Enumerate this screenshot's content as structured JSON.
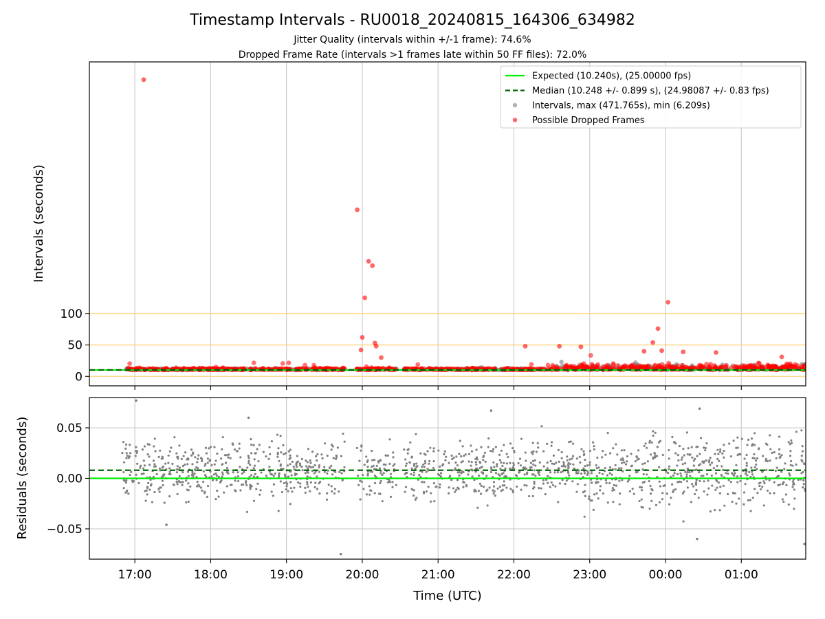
{
  "title": "Timestamp Intervals - RU0018_20240815_164306_634982",
  "subtitle_lines": [
    "Jitter Quality (intervals within +/-1 frame): 74.6%",
    "Dropped Frame Rate (intervals >1 frames late within 50 FF files): 72.0%"
  ],
  "xlabel": "Time (UTC)",
  "colors": {
    "expected": "#00ee00",
    "median": "#006400",
    "intervals": "#808080",
    "dropped": "#ff0000",
    "reference_lines": "#ffd27a",
    "grid": "#cccccc"
  },
  "chart_data": [
    {
      "type": "scatter",
      "panel": "top",
      "ylabel": "Intervals (seconds)",
      "ylim": [
        -15,
        500
      ],
      "yticks": [
        0,
        50,
        100
      ],
      "x_axis": {
        "start": "16:24",
        "end": "01:51",
        "ticks": [
          "17:00",
          "18:00",
          "19:00",
          "20:00",
          "21:00",
          "22:00",
          "23:00",
          "00:00",
          "01:00"
        ]
      },
      "grid": "x-only",
      "reference_lines": [
        0,
        50,
        100
      ],
      "legend_position": "top-right",
      "legend": [
        "Expected (10.240s), (25.00000 fps)",
        "Median (10.248 +/- 0.899 s), (24.98087 +/- 0.83 fps)",
        "Intervals, max (471.765s), min (6.209s)",
        "Possible Dropped Frames"
      ],
      "expected_value": 10.24,
      "median_value": 10.248,
      "intervals_max": 471.765,
      "intervals_min": 6.209,
      "dropped_frame_outliers": [
        {
          "x": "17:07",
          "y": 471.765
        },
        {
          "x": "19:56",
          "y": 265
        },
        {
          "x": "20:05",
          "y": 183
        },
        {
          "x": "20:08",
          "y": 176
        },
        {
          "x": "20:02",
          "y": 125
        },
        {
          "x": "00:02",
          "y": 118
        },
        {
          "x": "23:54",
          "y": 76
        },
        {
          "x": "20:00",
          "y": 62
        },
        {
          "x": "19:59",
          "y": 42
        },
        {
          "x": "20:10",
          "y": 53
        },
        {
          "x": "20:11",
          "y": 48
        },
        {
          "x": "22:09",
          "y": 48
        },
        {
          "x": "22:36",
          "y": 48
        },
        {
          "x": "22:53",
          "y": 47
        },
        {
          "x": "23:50",
          "y": 54
        },
        {
          "x": "23:57",
          "y": 41
        },
        {
          "x": "00:14",
          "y": 39
        },
        {
          "x": "00:40",
          "y": 38
        },
        {
          "x": "20:15",
          "y": 30
        },
        {
          "x": "23:43",
          "y": 40
        },
        {
          "x": "01:32",
          "y": 31
        }
      ]
    },
    {
      "type": "scatter",
      "panel": "bottom",
      "ylabel": "Residuals (seconds)",
      "ylim": [
        -0.08,
        0.08
      ],
      "yticks": [
        -0.05,
        0.0,
        0.05
      ],
      "ytick_labels": [
        "−0.05",
        "0.00",
        "0.05"
      ],
      "x_axis": {
        "start": "16:24",
        "end": "01:51",
        "ticks": [
          "17:00",
          "18:00",
          "19:00",
          "20:00",
          "21:00",
          "22:00",
          "23:00",
          "00:00",
          "01:00"
        ]
      },
      "grid": "both",
      "expected_residual": 0.0,
      "median_residual": 0.008,
      "residual_spread": 0.02,
      "residual_extremes": [
        {
          "x": "17:01",
          "y": 0.077
        },
        {
          "x": "19:43",
          "y": -0.075
        },
        {
          "x": "21:42",
          "y": 0.067
        },
        {
          "x": "00:27",
          "y": 0.069
        },
        {
          "x": "01:50",
          "y": -0.065
        },
        {
          "x": "00:25",
          "y": -0.06
        },
        {
          "x": "18:30",
          "y": 0.06
        },
        {
          "x": "17:25",
          "y": -0.046
        }
      ]
    }
  ]
}
